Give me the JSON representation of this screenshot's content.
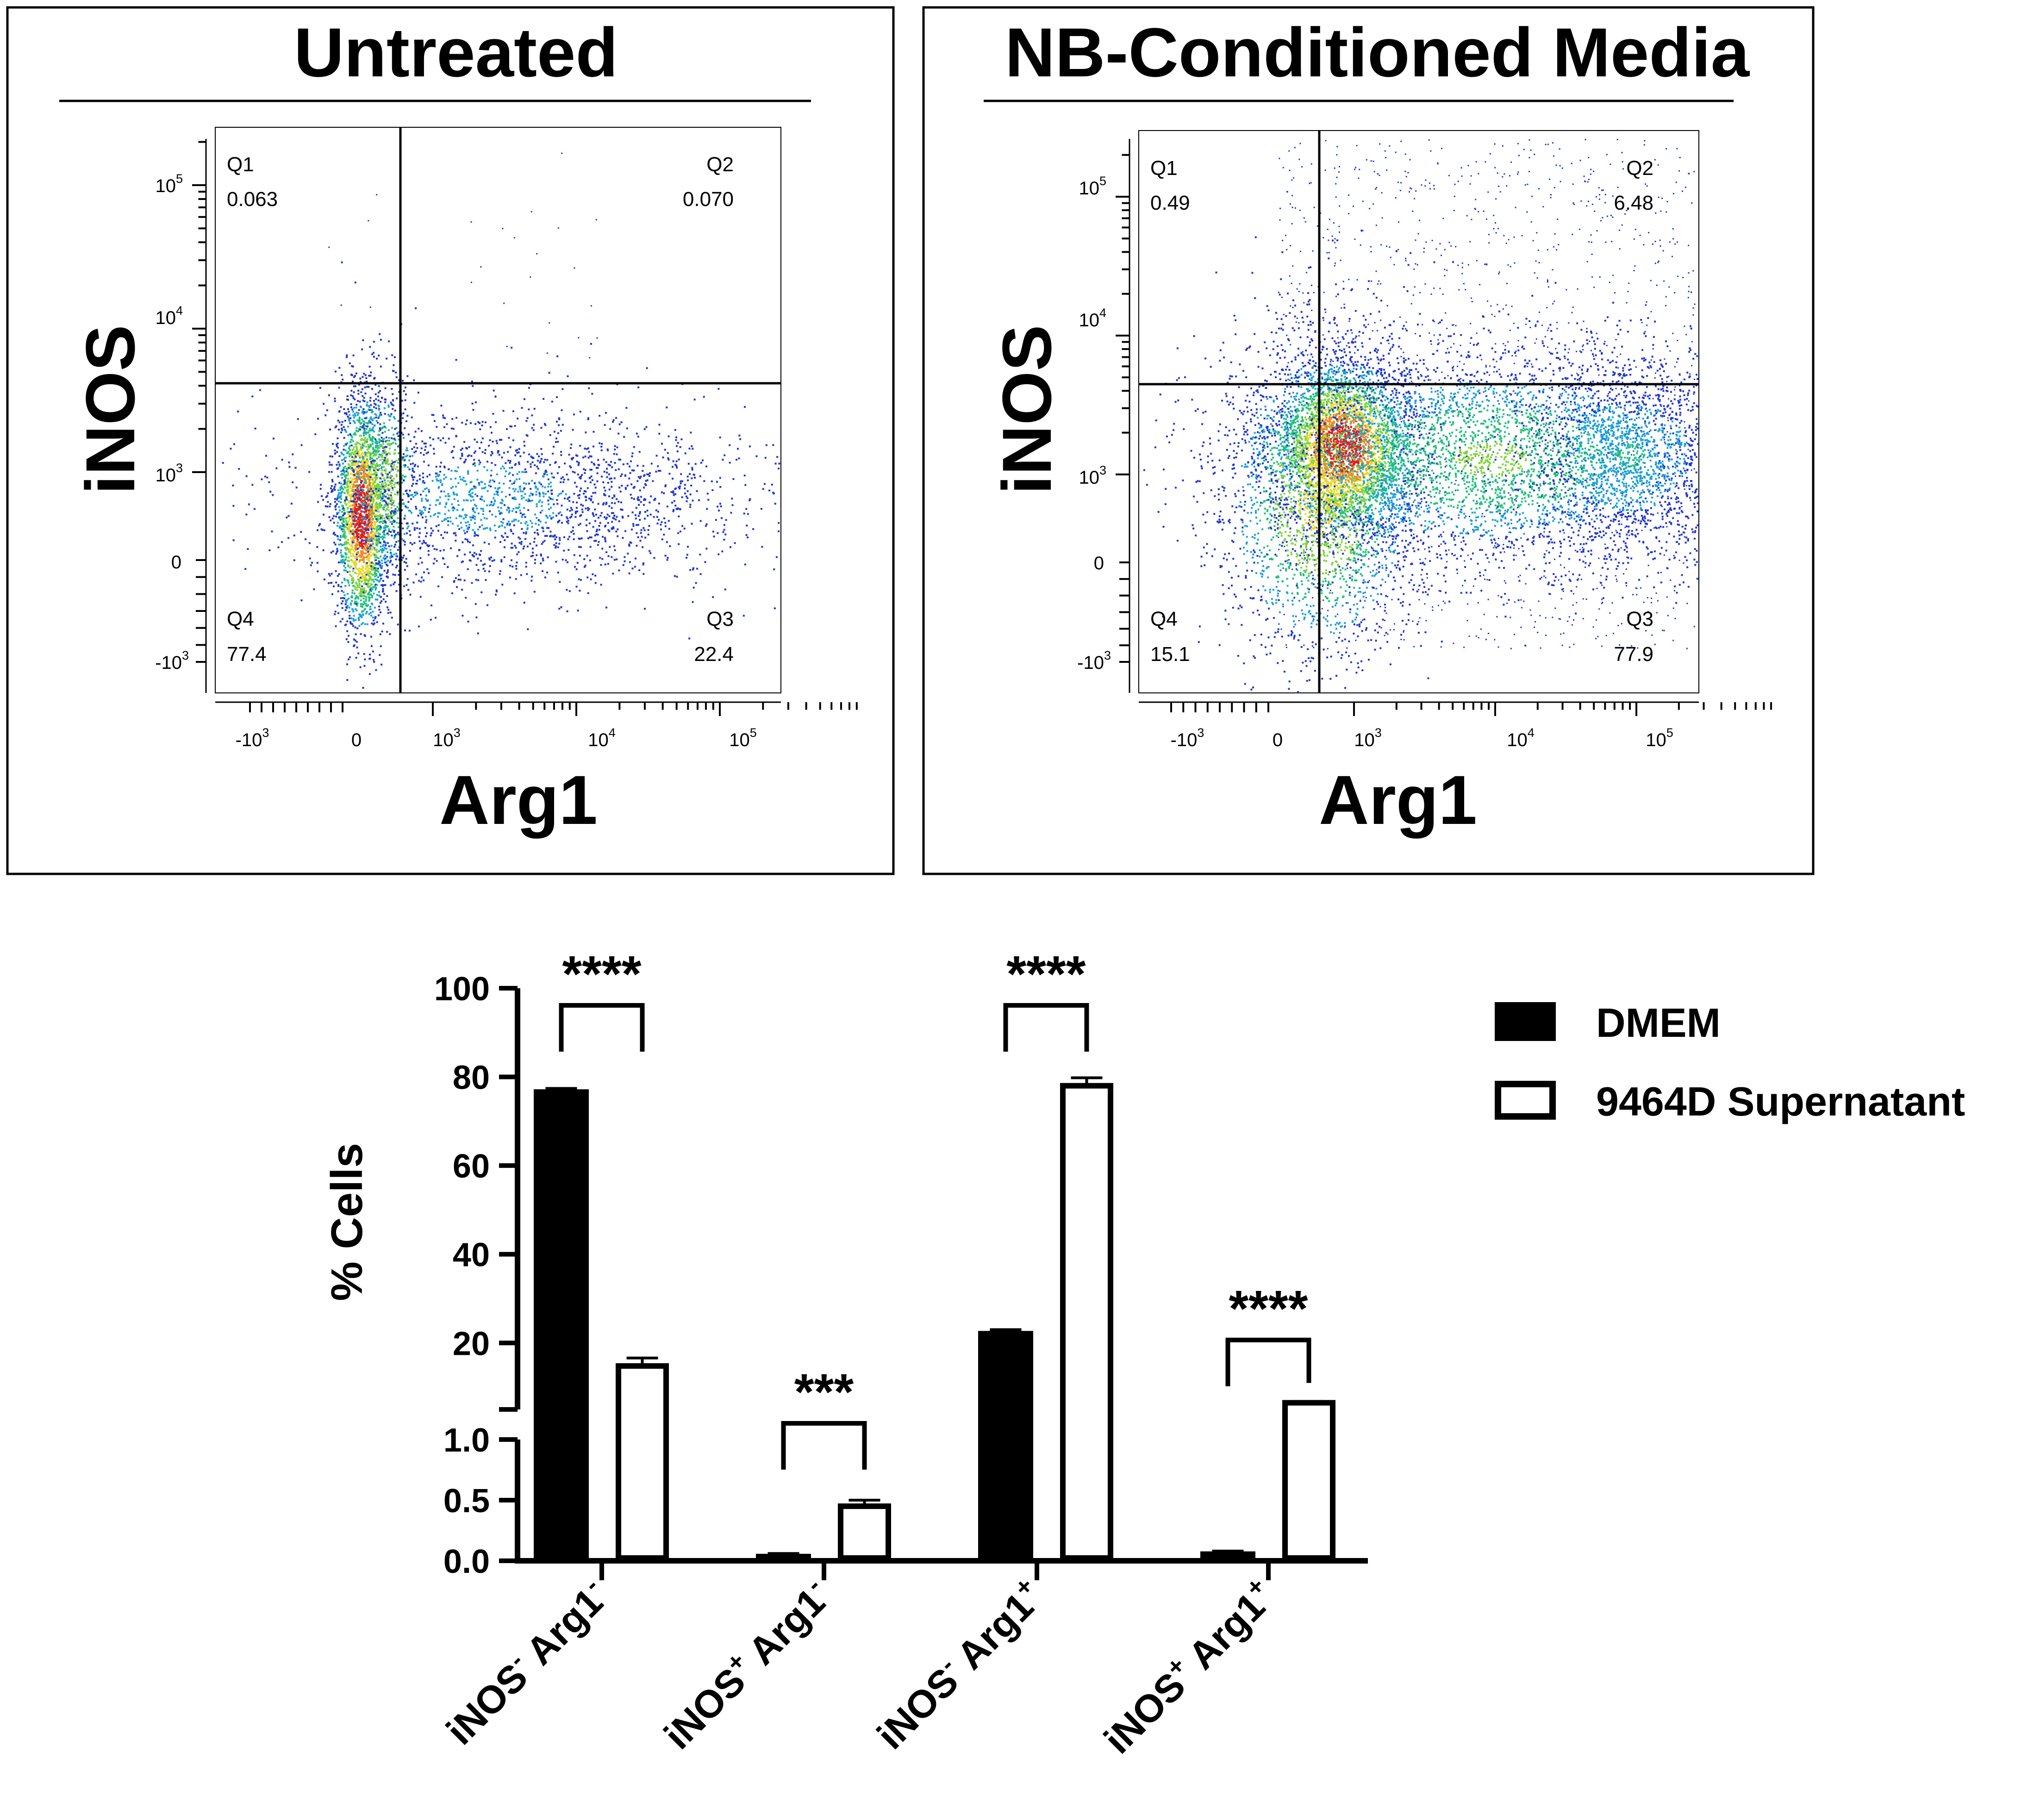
{
  "flow_panels": [
    {
      "title": "Untreated",
      "x_label": "Arg1",
      "y_label": "iNOS",
      "x_ticks": [
        "-10^3",
        "0",
        "10^3",
        "10^4",
        "10^5"
      ],
      "y_ticks": [
        "10^5",
        "10^4",
        "10^3",
        "0",
        "-10^3"
      ],
      "quadrants": {
        "Q1": {
          "label": "Q1",
          "value": "0.063"
        },
        "Q2": {
          "label": "Q2",
          "value": "0.070"
        },
        "Q3": {
          "label": "Q3",
          "value": "22.4"
        },
        "Q4": {
          "label": "Q4",
          "value": "77.4"
        }
      }
    },
    {
      "title": "NB-Conditioned Media",
      "x_label": "Arg1",
      "y_label": "iNOS",
      "x_ticks": [
        "-10^3",
        "0",
        "10^3",
        "10^4",
        "10^5"
      ],
      "y_ticks": [
        "10^5",
        "10^4",
        "10^3",
        "0",
        "-10^3"
      ],
      "quadrants": {
        "Q1": {
          "label": "Q1",
          "value": "0.49"
        },
        "Q2": {
          "label": "Q2",
          "value": "6.48"
        },
        "Q3": {
          "label": "Q3",
          "value": "77.9"
        },
        "Q4": {
          "label": "Q4",
          "value": "15.1"
        }
      }
    }
  ],
  "chart_data": {
    "type": "bar",
    "title": "",
    "ylabel": "% Cells",
    "xlabel": "",
    "y_axis_segments": {
      "lower": {
        "ylim": [
          0,
          1.0
        ],
        "ticks": [
          "0.0",
          "0.5",
          "1.0"
        ]
      },
      "upper": {
        "ylim": [
          5,
          100
        ],
        "ticks": [
          "20",
          "40",
          "60",
          "80",
          "100"
        ]
      }
    },
    "categories": [
      {
        "base1": "iNOS",
        "sup1": "-",
        "base2": "Arg1",
        "sup2": "-"
      },
      {
        "base1": "iNOS",
        "sup1": "+",
        "base2": "Arg1",
        "sup2": "-"
      },
      {
        "base1": "iNOS",
        "sup1": "-",
        "base2": "Arg1",
        "sup2": "+"
      },
      {
        "base1": "iNOS",
        "sup1": "+",
        "base2": "Arg1",
        "sup2": "+"
      }
    ],
    "series": [
      {
        "name": "DMEM",
        "fill": "#000000",
        "values": [
          77.0,
          0.05,
          22.5,
          0.07
        ],
        "errors": [
          0.4,
          0.01,
          0.5,
          0.01
        ]
      },
      {
        "name": "9464D Supernatant",
        "fill": "#ffffff",
        "values": [
          14.8,
          0.45,
          78.0,
          6.5
        ],
        "errors": [
          1.8,
          0.05,
          1.8,
          0.3
        ]
      }
    ],
    "significance": [
      "****",
      "***",
      "****",
      "****"
    ]
  }
}
